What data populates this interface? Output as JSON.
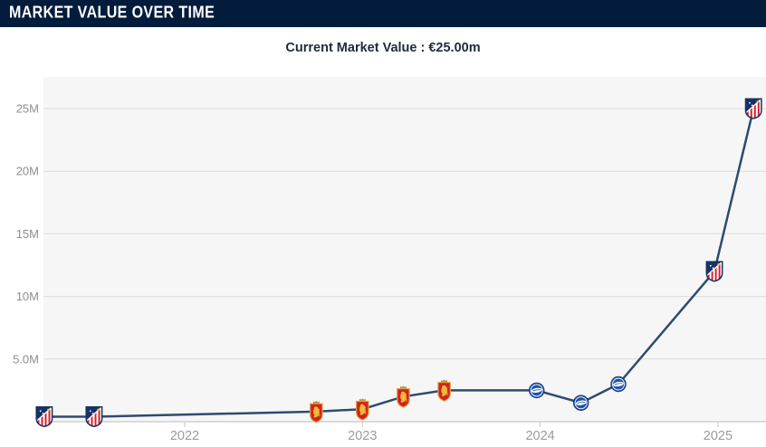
{
  "header": {
    "title": "MARKET VALUE OVER TIME"
  },
  "subtitle": {
    "text": "Current Market Value : €25.00m"
  },
  "theme": {
    "header_bg": "#041c3c",
    "header_text": "#ffffff",
    "subtitle_color": "#1e2b3a",
    "plot_bg": "#f6f6f6",
    "grid_color": "#dcdcdc",
    "axis_color": "#c6c6c6",
    "y_label_color": "#8d8f91",
    "x_label_color": "#999b9d",
    "line_color": "#2e4b6e"
  },
  "chart_data": {
    "type": "line",
    "title": "Market value over time",
    "xlabel": "",
    "ylabel": "",
    "grid": true,
    "legend": "none",
    "xlim": [
      2021.16,
      2025.27
    ],
    "ylim": [
      0,
      27.5
    ],
    "x_ticks": [
      {
        "value": 2022,
        "label": "2022"
      },
      {
        "value": 2023,
        "label": "2023"
      },
      {
        "value": 2024,
        "label": "2024"
      },
      {
        "value": 2025,
        "label": "2025"
      }
    ],
    "y_ticks": [
      {
        "value": 5,
        "label": "5.0M"
      },
      {
        "value": 10,
        "label": "10M"
      },
      {
        "value": 15,
        "label": "15M"
      },
      {
        "value": 20,
        "label": "20M"
      },
      {
        "value": 25,
        "label": "25M"
      }
    ],
    "points": [
      {
        "x": 2021.21,
        "value_m": 0.4,
        "club": "atletico-madrid"
      },
      {
        "x": 2021.49,
        "value_m": 0.4,
        "club": "atletico-madrid"
      },
      {
        "x": 2022.74,
        "value_m": 0.8,
        "club": "real-zaragoza"
      },
      {
        "x": 2023.0,
        "value_m": 1.0,
        "club": "real-zaragoza"
      },
      {
        "x": 2023.23,
        "value_m": 2.0,
        "club": "real-zaragoza"
      },
      {
        "x": 2023.46,
        "value_m": 2.5,
        "club": "real-zaragoza"
      },
      {
        "x": 2023.98,
        "value_m": 2.5,
        "club": "deportivo-alaves"
      },
      {
        "x": 2024.23,
        "value_m": 1.5,
        "club": "deportivo-alaves"
      },
      {
        "x": 2024.44,
        "value_m": 3.0,
        "club": "deportivo-alaves"
      },
      {
        "x": 2024.98,
        "value_m": 12.0,
        "club": "atletico-madrid"
      },
      {
        "x": 2025.2,
        "value_m": 25.0,
        "club": "atletico-madrid"
      }
    ],
    "clubs": {
      "atletico-madrid": {
        "primary": "#d3232e",
        "secondary": "#173264",
        "accent": "#f5c431",
        "shape": "striped-shield"
      },
      "real-zaragoza": {
        "primary": "#d41f1f",
        "gold": "#d8a53d",
        "shape": "crowned-shield"
      },
      "deportivo-alaves": {
        "primary": "#2153a8",
        "band": "#ffffff",
        "shape": "round-badge"
      }
    }
  }
}
